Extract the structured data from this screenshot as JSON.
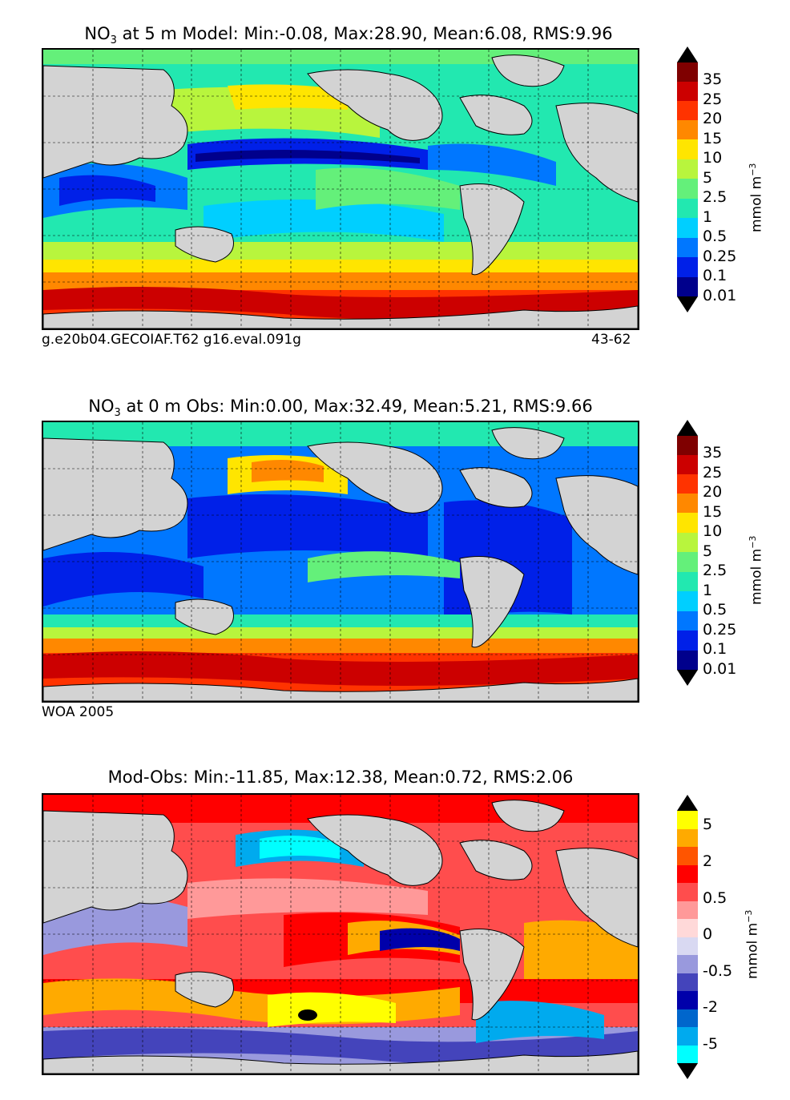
{
  "panels": [
    {
      "title_main": "NO",
      "title_sub": "3",
      "title_rest": "  at 5 m Model: Min:-0.08, Max:28.90, Mean:6.08, RMS:9.96",
      "footer_left": "g.e20b04.GECOIAF.T62 g16.eval.091g",
      "footer_right": "43-62",
      "colorbar": {
        "ticks": [
          "35",
          "25",
          "20",
          "15",
          "10",
          "5",
          "2.5",
          "1",
          "0.5",
          "0.25",
          "0.1",
          "0.01"
        ],
        "unit": "mmol m",
        "unit_exp": "−3",
        "colors": [
          "#7f0000",
          "#cc0000",
          "#ff3300",
          "#ff8800",
          "#ffe500",
          "#b8f53d",
          "#64f07a",
          "#22e8b0",
          "#00cfff",
          "#0077ff",
          "#0020e8",
          "#00008c"
        ]
      }
    },
    {
      "title_main": "NO",
      "title_sub": "3",
      "title_rest": "  at 0 m Obs: Min:0.00, Max:32.49, Mean:5.21, RMS:9.66",
      "footer_left": "WOA 2005",
      "footer_right": "",
      "colorbar": {
        "ticks": [
          "35",
          "25",
          "20",
          "15",
          "10",
          "5",
          "2.5",
          "1",
          "0.5",
          "0.25",
          "0.1",
          "0.01"
        ],
        "unit": "mmol m",
        "unit_exp": "−3",
        "colors": [
          "#7f0000",
          "#cc0000",
          "#ff3300",
          "#ff8800",
          "#ffe500",
          "#b8f53d",
          "#64f07a",
          "#22e8b0",
          "#00cfff",
          "#0077ff",
          "#0020e8",
          "#00008c"
        ]
      }
    },
    {
      "title_main": "Mod-Obs: Min:-11.85, Max:12.38, Mean:0.72, RMS:2.06",
      "title_sub": "",
      "title_rest": "",
      "footer_left": "",
      "footer_right": "",
      "colorbar": {
        "ticks": [
          "5",
          "2",
          "0.5",
          "0",
          "-0.5",
          "-2",
          "-5"
        ],
        "unit": "mmol m",
        "unit_exp": "−3",
        "colors": [
          "#ffff00",
          "#ffaa00",
          "#ff5500",
          "#ff0000",
          "#ff4d4d",
          "#ff9999",
          "#ffd9d9",
          "#d9d9f2",
          "#9999dd",
          "#4444bb",
          "#0000aa",
          "#0066cc",
          "#00aaee",
          "#00ffff"
        ]
      }
    }
  ]
}
